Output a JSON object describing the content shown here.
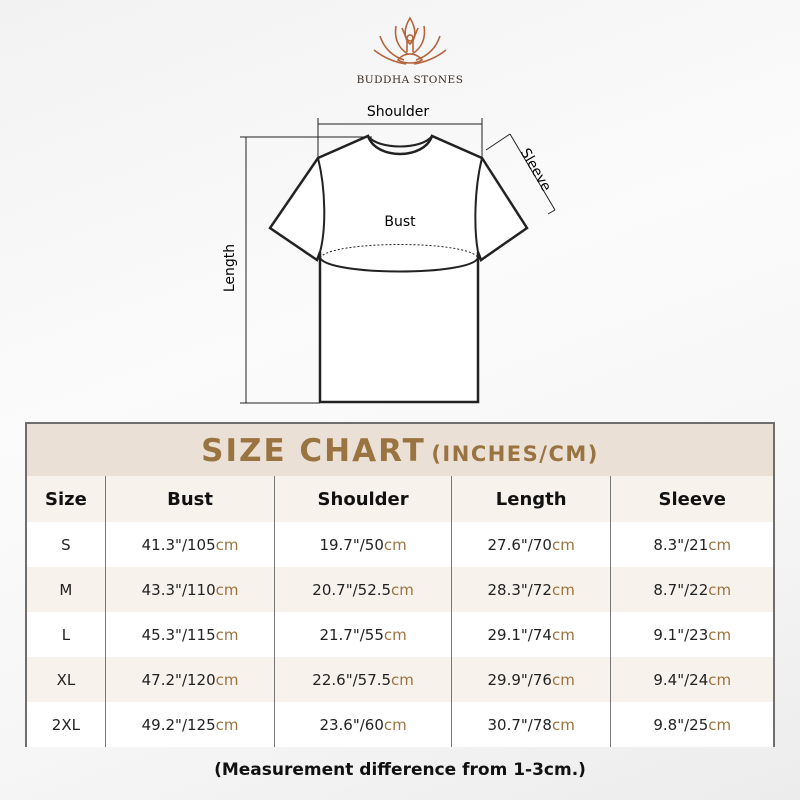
{
  "brand": {
    "name": "BUDDHA STONES",
    "colors": {
      "logo": "#b5643c",
      "accent": "#9a7440"
    }
  },
  "diagram": {
    "shoulder": "Shoulder",
    "sleeve": "Sleeve",
    "bust": "Bust",
    "length": "Length"
  },
  "table": {
    "title": "SIZE CHART",
    "title_units": "(INCHES/CM)",
    "headers": [
      "Size",
      "Bust",
      "Shoulder",
      "Length",
      "Sleeve"
    ],
    "unit": "cm",
    "rows": [
      {
        "size": "S",
        "vals": [
          "41.3\"/105",
          "19.7\"/50",
          "27.6\"/70",
          "8.3\"/21"
        ]
      },
      {
        "size": "M",
        "vals": [
          "43.3\"/110",
          "20.7\"/52.5",
          "28.3\"/72",
          "8.7\"/22"
        ]
      },
      {
        "size": "L",
        "vals": [
          "45.3\"/115",
          "21.7\"/55",
          "29.1\"/74",
          "9.1\"/23"
        ]
      },
      {
        "size": "XL",
        "vals": [
          "47.2\"/120",
          "22.6\"/57.5",
          "29.9\"/76",
          "9.4\"/24"
        ]
      },
      {
        "size": "2XL",
        "vals": [
          "49.2\"/125",
          "23.6\"/60",
          "30.7\"/78",
          "9.8\"/25"
        ]
      }
    ]
  },
  "note": "(Measurement difference from 1-3cm.)"
}
